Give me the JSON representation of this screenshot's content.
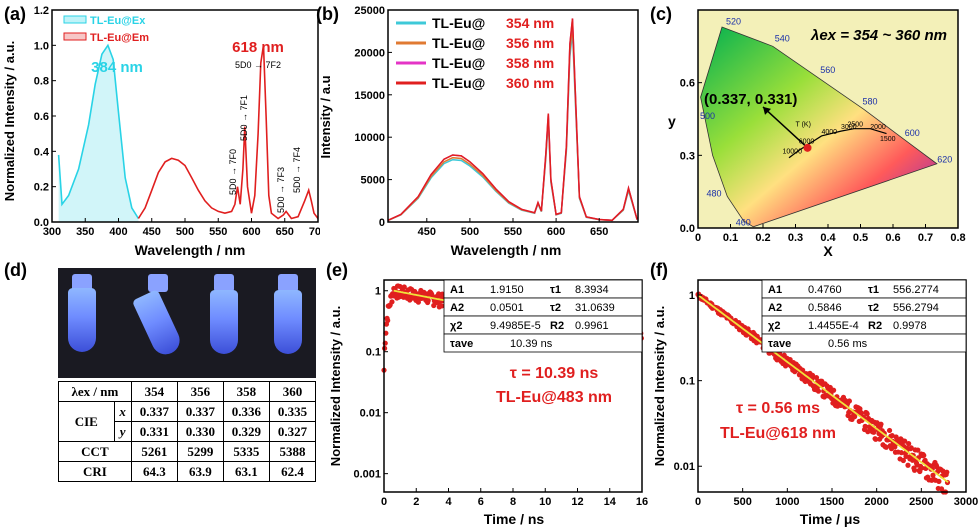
{
  "panels": {
    "a": {
      "label": "(a)",
      "ylabel": "Normalized Intensity / a.u.",
      "xlabel": "Wavelength / nm",
      "legend": [
        "TL-Eu@Ex",
        "TL-Eu@Em"
      ],
      "peak_ex": "384 nm",
      "peak_em": "618 nm",
      "trans": [
        "5D0 → 7F2",
        "5D0 → 7F1",
        "5D0 → 7F0",
        "5D0 → 7F3",
        "5D0 → 7F4"
      ]
    },
    "b": {
      "label": "(b)",
      "ylabel": "Intensity / a.u",
      "xlabel": "Wavelength / nm",
      "legend_prefix": "TL-Eu@",
      "legend_vals": [
        "354 nm",
        "356 nm",
        "358 nm",
        "360 nm"
      ]
    },
    "c": {
      "label": "(c)",
      "title": "λex = 354 ~ 360 nm",
      "coord": "(0.337, 0.331)",
      "xlabel": "X",
      "ylabel": "y",
      "tlabel": "T (K)",
      "wl": [
        "520",
        "540",
        "560",
        "580",
        "600",
        "620",
        "500",
        "480",
        "460"
      ],
      "temps": [
        "10000",
        "6000",
        "4000",
        "3000",
        "2500",
        "2000",
        "1500"
      ]
    },
    "d": {
      "label": "(d)"
    },
    "e": {
      "label": "(e)",
      "ylabel": "Normalized Intensity / a.u.",
      "xlabel": "Time / ns",
      "tau": "τ = 10.39 ns",
      "sample": "TL-Eu@483 nm"
    },
    "f": {
      "label": "(f)",
      "ylabel": "Normalized Intensity / a.u.",
      "xlabel": "Time / μs",
      "tau": "τ = 0.56 ms",
      "sample": "TL-Eu@618 nm"
    }
  },
  "table_d": {
    "header": [
      "λex / nm",
      "354",
      "356",
      "358",
      "360"
    ],
    "rows": [
      [
        "CIE",
        "x",
        "0.337",
        "0.337",
        "0.336",
        "0.335"
      ],
      [
        "",
        "y",
        "0.331",
        "0.330",
        "0.329",
        "0.327"
      ],
      [
        "CCT",
        "",
        "5261",
        "5299",
        "5335",
        "5388"
      ],
      [
        "CRI",
        "",
        "64.3",
        "63.9",
        "63.1",
        "62.4"
      ]
    ]
  },
  "table_e": [
    [
      "A1",
      "1.9150",
      "τ1",
      "8.3934"
    ],
    [
      "A2",
      "0.0501",
      "τ2",
      "31.0639"
    ],
    [
      "χ2",
      "9.4985E-5",
      "R2",
      "0.9961"
    ],
    [
      "τave",
      "10.39 ns"
    ]
  ],
  "table_f": [
    [
      "A1",
      "0.4760",
      "τ1",
      "556.2774"
    ],
    [
      "A2",
      "0.5846",
      "τ2",
      "556.2794"
    ],
    [
      "χ2",
      "1.4455E-4",
      "R2",
      "0.9978"
    ],
    [
      "τave",
      "0.56 ms"
    ]
  ],
  "chart_data": [
    {
      "type": "line",
      "panel": "a",
      "xlim": [
        300,
        700
      ],
      "ylim": [
        0,
        1.2
      ],
      "xticks": [
        300,
        350,
        400,
        450,
        500,
        550,
        600,
        650,
        700
      ],
      "yticks": [
        0.0,
        0.2,
        0.4,
        0.6,
        0.8,
        1.0,
        1.2
      ],
      "series": [
        {
          "name": "TL-Eu@Ex",
          "color": "#29d3e6",
          "x": [
            310,
            315,
            325,
            340,
            355,
            365,
            375,
            384,
            392,
            400,
            410,
            420,
            430
          ],
          "y": [
            0.38,
            0.1,
            0.15,
            0.3,
            0.55,
            0.78,
            0.95,
            1.0,
            0.92,
            0.62,
            0.25,
            0.08,
            0.02
          ]
        },
        {
          "name": "TL-Eu@Em",
          "color": "#e01f1f",
          "x": [
            430,
            440,
            450,
            460,
            470,
            480,
            490,
            500,
            510,
            520,
            530,
            540,
            550,
            560,
            570,
            575,
            579,
            583,
            587,
            590,
            594,
            600,
            605,
            610,
            614,
            618,
            622,
            626,
            630,
            640,
            648,
            652,
            656,
            660,
            670,
            680,
            686,
            690,
            694,
            700
          ],
          "y": [
            0.02,
            0.08,
            0.18,
            0.28,
            0.34,
            0.36,
            0.35,
            0.32,
            0.25,
            0.18,
            0.12,
            0.08,
            0.06,
            0.05,
            0.06,
            0.1,
            0.2,
            0.1,
            0.3,
            0.54,
            0.2,
            0.05,
            0.15,
            0.5,
            0.9,
            1.0,
            0.6,
            0.15,
            0.05,
            0.02,
            0.04,
            0.06,
            0.04,
            0.02,
            0.03,
            0.12,
            0.18,
            0.12,
            0.05,
            0.02
          ]
        }
      ]
    },
    {
      "type": "line",
      "panel": "b",
      "xlim": [
        405,
        695
      ],
      "ylim": [
        0,
        25000
      ],
      "xticks": [
        450,
        500,
        550,
        600,
        650,
        700
      ],
      "yticks": [
        0,
        5000,
        10000,
        15000,
        20000,
        25000
      ],
      "x": [
        405,
        420,
        440,
        455,
        470,
        480,
        490,
        500,
        515,
        530,
        545,
        560,
        575,
        579,
        583,
        588,
        591,
        594,
        600,
        606,
        612,
        616,
        619,
        622,
        627,
        635,
        650,
        665,
        678,
        684,
        688,
        694
      ],
      "base": [
        200,
        900,
        3000,
        5600,
        7400,
        7900,
        7800,
        7100,
        5700,
        3900,
        2400,
        1500,
        1100,
        2300,
        1300,
        8000,
        12800,
        5000,
        900,
        1100,
        9000,
        21000,
        24000,
        16000,
        3000,
        600,
        300,
        200,
        1500,
        4000,
        2500,
        300
      ],
      "series": [
        {
          "name": "354 nm",
          "color": "#3ec9d8",
          "scale": 0.93
        },
        {
          "name": "356 nm",
          "color": "#e07a32",
          "scale": 0.96
        },
        {
          "name": "358 nm",
          "color": "#e434c6",
          "scale": 1.0
        },
        {
          "name": "360 nm",
          "color": "#e01f1f",
          "scale": 1.0
        }
      ]
    },
    {
      "type": "scatter",
      "panel": "c",
      "xlim": [
        0,
        0.8
      ],
      "ylim": [
        0,
        0.9
      ],
      "xticks": [
        0.0,
        0.1,
        0.2,
        0.3,
        0.4,
        0.5,
        0.6,
        0.7,
        0.8
      ],
      "yticks": [
        0.0,
        0.3,
        0.6
      ],
      "points": [
        {
          "x": 0.337,
          "y": 0.331
        }
      ]
    },
    {
      "type": "scatter",
      "panel": "e",
      "yscale": "log",
      "xlim": [
        0,
        16
      ],
      "ylim": [
        0.0005,
        1.5
      ],
      "xticks": [
        0,
        2,
        4,
        6,
        8,
        10,
        12,
        14,
        16
      ],
      "yticks": [
        1,
        0.1,
        0.01,
        0.001
      ],
      "ytick_labels": [
        "1",
        "0.1",
        "0.01",
        "0.001"
      ],
      "x0": 0.6,
      "rise_end": 0.75,
      "A1": 1.915,
      "tau1": 8.3934,
      "A2": 0.0501,
      "tau2": 31.0639,
      "floor": 0.003
    },
    {
      "type": "scatter",
      "panel": "f",
      "yscale": "log",
      "xlim": [
        0,
        3000
      ],
      "ylim": [
        0.005,
        1.5
      ],
      "xticks": [
        0,
        500,
        1000,
        1500,
        2000,
        2500,
        3000
      ],
      "yticks": [
        1,
        0.1,
        0.01
      ],
      "ytick_labels": [
        "1",
        "0.1",
        "0.01"
      ],
      "tau": 556,
      "end": 2800
    }
  ]
}
